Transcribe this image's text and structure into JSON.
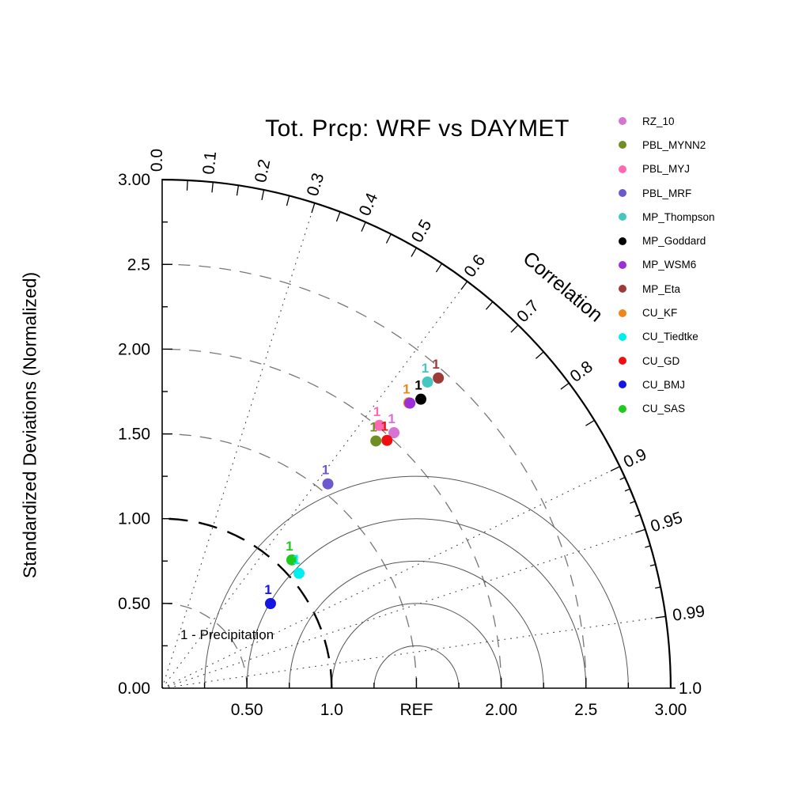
{
  "chart_data": {
    "type": "taylor",
    "title": "Tot. Prcp: WRF vs DAYMET",
    "ylabel": "Standardized Deviations (Normalized)",
    "correlation_axis_label": "Correlation",
    "annotation": "1 - Precipitation",
    "marker_label": "1",
    "std_max": 3.0,
    "ref_value": 1.5,
    "x_ticks": [
      {
        "value": 0.5,
        "label": "0.50"
      },
      {
        "value": 1.0,
        "label": "1.0"
      },
      {
        "value": 1.5,
        "label": "REF"
      },
      {
        "value": 2.0,
        "label": "2.00"
      },
      {
        "value": 2.5,
        "label": "2.5"
      },
      {
        "value": 3.0,
        "label": "3.00"
      }
    ],
    "y_ticks": [
      {
        "value": 0.0,
        "label": "0.00"
      },
      {
        "value": 0.5,
        "label": "0.50"
      },
      {
        "value": 1.0,
        "label": "1.00"
      },
      {
        "value": 1.5,
        "label": "1.50"
      },
      {
        "value": 2.0,
        "label": "2.00"
      },
      {
        "value": 2.5,
        "label": "2.5"
      },
      {
        "value": 3.0,
        "label": "3.00"
      }
    ],
    "corr_labels": [
      {
        "value": 0.0,
        "label": "0.0"
      },
      {
        "value": 0.1,
        "label": "0.1"
      },
      {
        "value": 0.2,
        "label": "0.2"
      },
      {
        "value": 0.3,
        "label": "0.3"
      },
      {
        "value": 0.4,
        "label": "0.4"
      },
      {
        "value": 0.5,
        "label": "0.5"
      },
      {
        "value": 0.6,
        "label": "0.6"
      },
      {
        "value": 0.7,
        "label": "0.7"
      },
      {
        "value": 0.8,
        "label": "0.8"
      },
      {
        "value": 0.9,
        "label": "0.9"
      },
      {
        "value": 0.95,
        "label": "0.95"
      },
      {
        "value": 0.99,
        "label": "0.99"
      },
      {
        "value": 1.0,
        "label": "1.0"
      }
    ],
    "std_arcs_dashed": [
      0.5,
      1.5,
      2.0,
      2.5
    ],
    "std_arc_bold_dashed": 1.0,
    "rms_arc_radii": [
      0.25,
      0.5,
      0.75,
      1.0,
      1.25
    ],
    "corr_rays_dotted": [
      0.3,
      0.6,
      0.9,
      0.95,
      0.99
    ],
    "series": [
      {
        "name": "RZ_10",
        "color": "#D773D2",
        "std": 2.035,
        "corr": 0.672,
        "label_visible": true
      },
      {
        "name": "PBL_MYNN2",
        "color": "#6F8F25",
        "std": 1.928,
        "corr": 0.654,
        "label_visible": true
      },
      {
        "name": "PBL_MYJ",
        "color": "#FF69B4",
        "std": 2.011,
        "corr": 0.637,
        "label_visible": true
      },
      {
        "name": "PBL_MRF",
        "color": "#6A5ACD",
        "std": 1.552,
        "corr": 0.63,
        "label_visible": true
      },
      {
        "name": "MP_Thompson",
        "color": "#45C6BE",
        "std": 2.39,
        "corr": 0.655,
        "label_visible": true
      },
      {
        "name": "MP_Goddard",
        "color": "#000000",
        "std": 2.288,
        "corr": 0.667,
        "label_visible": true
      },
      {
        "name": "MP_WSM6",
        "color": "#9B30D9",
        "std": 2.228,
        "corr": 0.656,
        "label_visible": false
      },
      {
        "name": "MP_Eta",
        "color": "#9E3A38",
        "std": 2.45,
        "corr": 0.665,
        "label_visible": true
      },
      {
        "name": "CU_KF",
        "color": "#F08519",
        "std": 2.225,
        "corr": 0.654,
        "label_visible": true
      },
      {
        "name": "CU_Tiedtke",
        "color": "#00EEEE",
        "std": 1.054,
        "corr": 0.766,
        "label_visible": true
      },
      {
        "name": "CU_GD",
        "color": "#EE1010",
        "std": 1.974,
        "corr": 0.672,
        "label_visible": true
      },
      {
        "name": "CU_BMJ",
        "color": "#1414E3",
        "std": 0.811,
        "corr": 0.788,
        "label_visible": true
      },
      {
        "name": "CU_SAS",
        "color": "#20C920",
        "std": 1.076,
        "corr": 0.711,
        "label_visible": true
      }
    ]
  }
}
